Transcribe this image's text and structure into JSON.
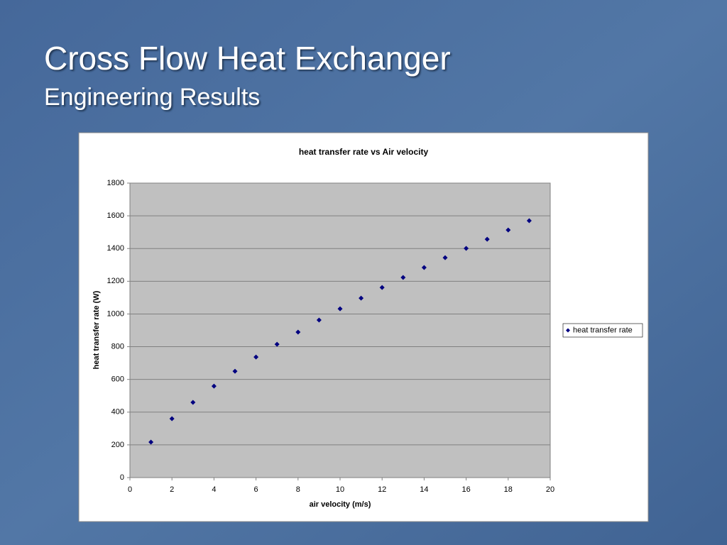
{
  "slide": {
    "title": "Cross Flow Heat Exchanger",
    "subtitle": "Engineering Results"
  },
  "chart_data": {
    "type": "scatter",
    "title": "heat transfer rate vs Air velocity",
    "xlabel": "air velocity (m/s)",
    "ylabel": "heat transfer rate (W)",
    "x": [
      1,
      2,
      3,
      4,
      5,
      6,
      7,
      8,
      9,
      10,
      11,
      12,
      13,
      14,
      15,
      16,
      17,
      18,
      19
    ],
    "series": [
      {
        "name": "heat transfer rate",
        "color": "#000080",
        "values": [
          217,
          360,
          460,
          559,
          650,
          737,
          815,
          889,
          963,
          1032,
          1097,
          1162,
          1223,
          1284,
          1344,
          1401,
          1457,
          1513,
          1570
        ]
      }
    ],
    "xlim": [
      0,
      20
    ],
    "xticks": [
      0,
      2,
      4,
      6,
      8,
      10,
      12,
      14,
      16,
      18,
      20
    ],
    "ylim": [
      0,
      1800
    ],
    "yticks": [
      0,
      200,
      400,
      600,
      800,
      1000,
      1200,
      1400,
      1600,
      1800
    ],
    "grid": true,
    "legend": "right"
  }
}
